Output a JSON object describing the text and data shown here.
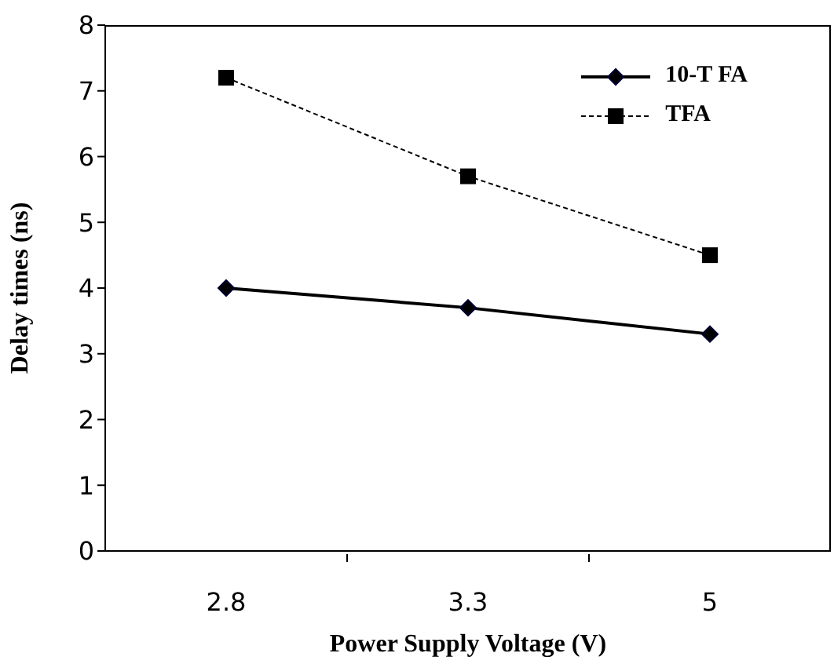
{
  "chart_data": {
    "type": "line",
    "xlabel": "Power Supply Voltage (V)",
    "ylabel": "Delay times (ns)",
    "categories": [
      "2.8",
      "3.3",
      "5"
    ],
    "ylim": [
      0,
      8
    ],
    "yticks": [
      0,
      1,
      2,
      3,
      4,
      5,
      6,
      7,
      8
    ],
    "grid": false,
    "legend": "top right",
    "series": [
      {
        "name": "10-T FA",
        "color": "#000000",
        "values": [
          4.0,
          3.7,
          3.3
        ],
        "marker": "diamond",
        "line_style": "solid"
      },
      {
        "name": "TFA",
        "color": "#000000",
        "values": [
          7.2,
          5.7,
          4.5
        ],
        "marker": "square",
        "line_style": "dashed"
      }
    ]
  }
}
